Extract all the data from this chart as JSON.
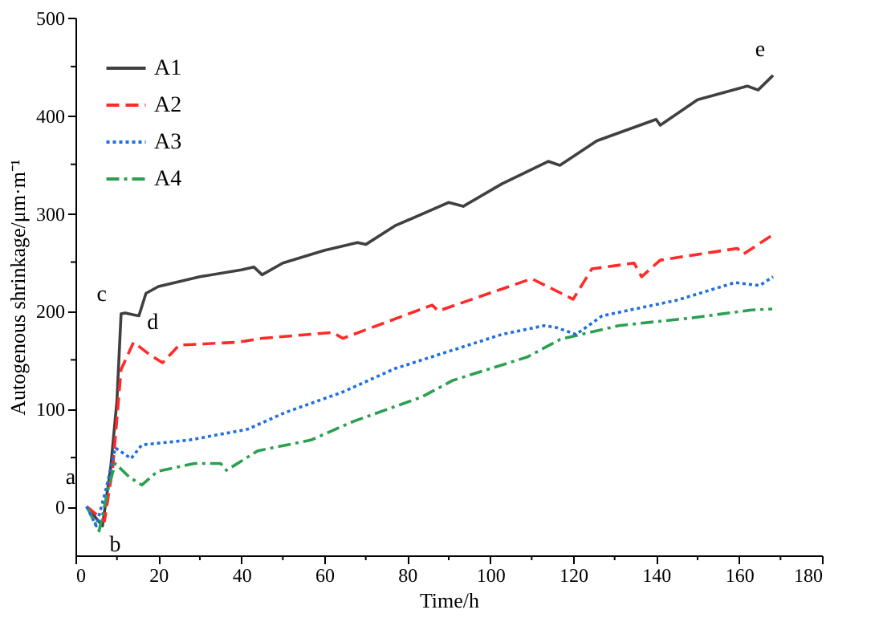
{
  "chart_data": {
    "type": "line",
    "xlabel": "Time/h",
    "ylabel": "Autogenous shrinkage/μm·m⁻¹",
    "xlim": [
      0,
      180
    ],
    "ylim": [
      -50,
      500
    ],
    "xticks": [
      0,
      {
        "value": 10,
        "label": null
      },
      20,
      {
        "value": 30,
        "label": null
      },
      40,
      {
        "value": 50,
        "label": null
      },
      60,
      {
        "value": 70,
        "label": null
      },
      80,
      {
        "value": 90,
        "label": null
      },
      100,
      {
        "value": 110,
        "label": null
      },
      120,
      {
        "value": 130,
        "label": null
      },
      140,
      {
        "value": 150,
        "label": null
      },
      160,
      {
        "value": 170,
        "label": null
      },
      180
    ],
    "yticks": [
      0,
      {
        "value": 50,
        "label": null
      },
      100,
      {
        "value": 150,
        "label": null
      },
      200,
      {
        "value": 250,
        "label": null
      },
      300,
      {
        "value": 350,
        "label": null
      },
      400,
      {
        "value": 450,
        "label": null
      },
      500
    ],
    "grid": false,
    "legend": "top left",
    "marker": "none",
    "series": [
      {
        "name": "A1",
        "color": "#404040",
        "line_style": "solid",
        "x": [
          2.7,
          6.5,
          8.5,
          10,
          11,
          12,
          14,
          15.3,
          17,
          20,
          30,
          40,
          43,
          45,
          50,
          60,
          68,
          70,
          77,
          90,
          93.5,
          102.8,
          114,
          116.8,
          125.7,
          140,
          141,
          150,
          162,
          164.6,
          168.2
        ],
        "values": [
          0,
          -20,
          40,
          108,
          197,
          198,
          196,
          195,
          218,
          225,
          235,
          242,
          245,
          237,
          249,
          262,
          270,
          268,
          287,
          311,
          307,
          330,
          353,
          349,
          374,
          396,
          390,
          416,
          430,
          426,
          441
        ]
      },
      {
        "name": "A2",
        "color": "#ff2a2a",
        "line_style": "dashed",
        "x": [
          2.7,
          7,
          9,
          11,
          14,
          18,
          21,
          25,
          39,
          45,
          62,
          64.5,
          86,
          87.5,
          110,
          120,
          124.5,
          134.7,
          136.5,
          141,
          159.6,
          161,
          168.2
        ],
        "values": [
          0,
          -15,
          40,
          140,
          168,
          155,
          147,
          165,
          168,
          172,
          178,
          172,
          206,
          200,
          233,
          212,
          243,
          249,
          235,
          252,
          264,
          258,
          278
        ]
      },
      {
        "name": "A3",
        "color": "#1f6fe0",
        "line_style": "dotted",
        "x": [
          2.7,
          5,
          7.5,
          9.6,
          13.4,
          16,
          27.5,
          41.5,
          50.5,
          64.4,
          77,
          102.8,
          113,
          116,
          120.7,
          127,
          145,
          159,
          165,
          168.2
        ],
        "values": [
          0,
          -20,
          20,
          60,
          49,
          63,
          68,
          79,
          96,
          117,
          141,
          176,
          185,
          183,
          176,
          195,
          211,
          229,
          226,
          235
        ]
      },
      {
        "name": "A4",
        "color": "#2ca050",
        "line_style": "dashdot",
        "x": [
          2.7,
          5.7,
          8,
          9.6,
          13,
          16,
          19.8,
          28.7,
          35,
          36.4,
          44,
          56.8,
          67,
          83.5,
          91,
          109,
          116.9,
          131,
          148.8,
          163,
          168
        ],
        "values": [
          0,
          -25,
          20,
          44,
          30,
          22,
          36,
          44,
          44,
          37,
          57,
          68,
          87,
          112,
          129,
          153,
          171,
          185,
          193,
          201,
          202
        ]
      }
    ],
    "annotations": [
      {
        "text": "a",
        "x": 2.7,
        "y": 0
      },
      {
        "text": "b",
        "x": 6.5,
        "y": -20
      },
      {
        "text": "c",
        "x": 11,
        "y": 197
      },
      {
        "text": "d",
        "x": 14,
        "y": 168
      },
      {
        "text": "e",
        "x": 168.2,
        "y": 441
      }
    ]
  }
}
